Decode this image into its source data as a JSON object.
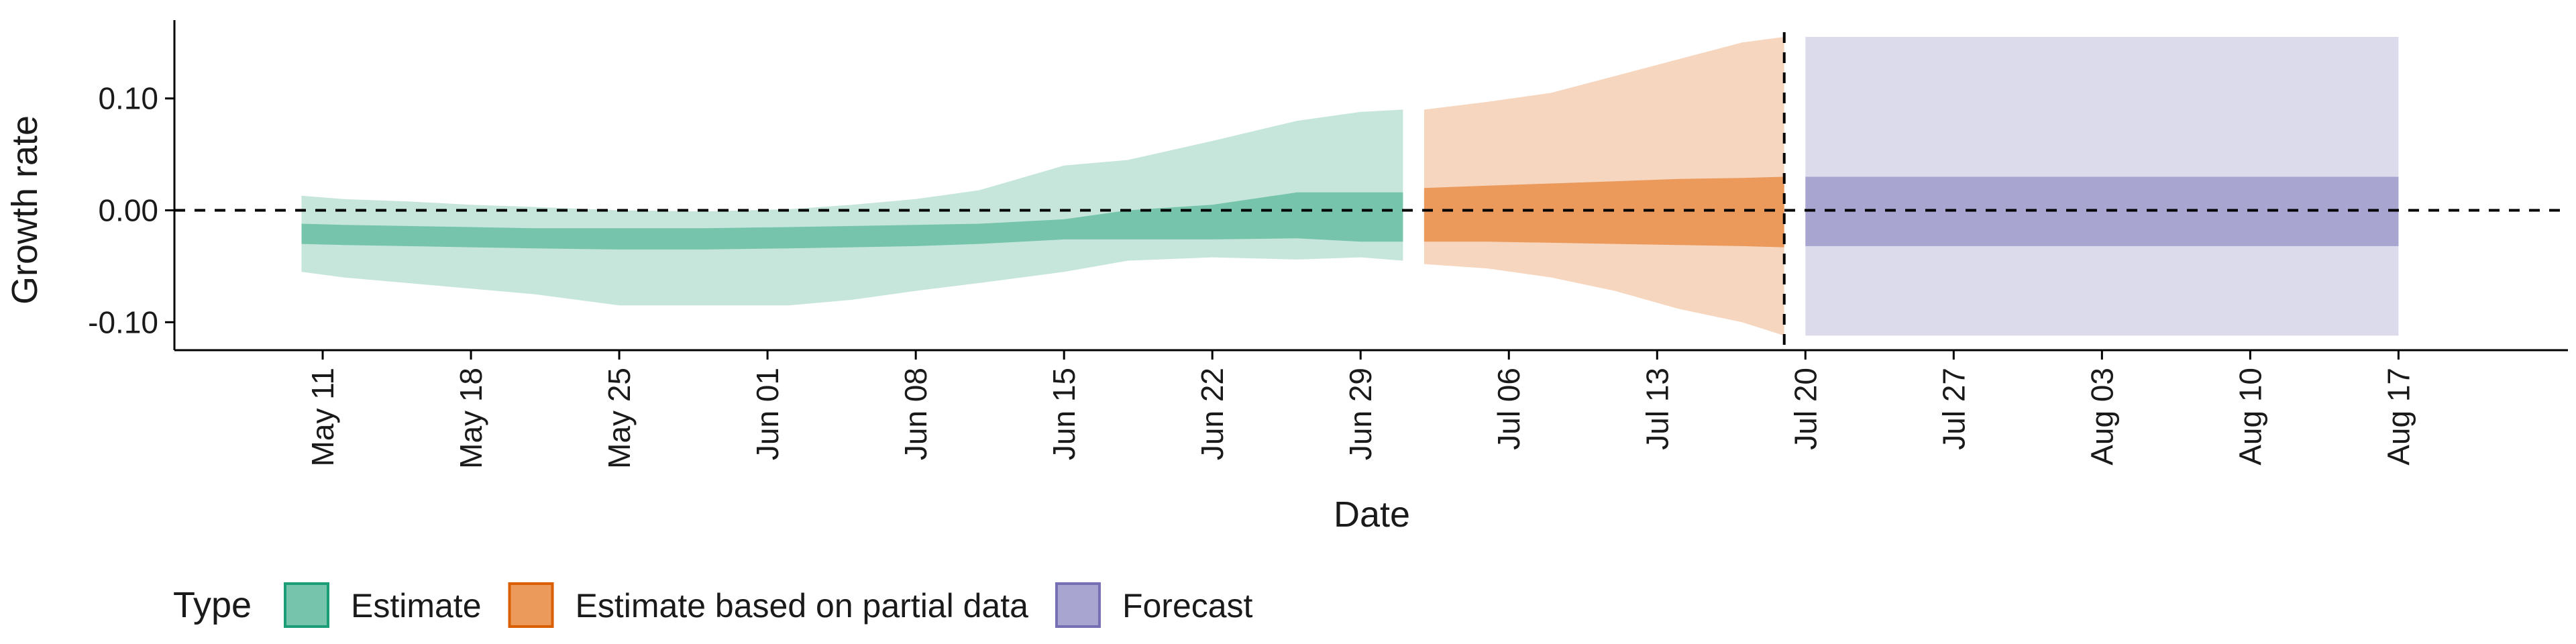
{
  "chart_data": {
    "type": "area",
    "xlabel": "Date",
    "ylabel": "Growth rate",
    "x_type": "date",
    "xlim": [
      "2020-05-04",
      "2020-08-25"
    ],
    "ylim": [
      -0.125,
      0.17
    ],
    "y_ticks": [
      -0.1,
      0.0,
      0.1
    ],
    "y_tick_labels": [
      "-0.10",
      "0.00",
      "0.10"
    ],
    "x_ticks": [
      "2020-05-11",
      "2020-05-18",
      "2020-05-25",
      "2020-06-01",
      "2020-06-08",
      "2020-06-15",
      "2020-06-22",
      "2020-06-29",
      "2020-07-06",
      "2020-07-13",
      "2020-07-20",
      "2020-07-27",
      "2020-08-03",
      "2020-08-10",
      "2020-08-17"
    ],
    "x_tick_labels": [
      "May 11",
      "May 18",
      "May 25",
      "Jun 01",
      "Jun 08",
      "Jun 15",
      "Jun 22",
      "Jun 29",
      "Jul 06",
      "Jul 13",
      "Jul 20",
      "Jul 27",
      "Aug 03",
      "Aug 10",
      "Aug 17"
    ],
    "reference_lines": {
      "horizontal_y": 0.0,
      "vertical_x": "2020-07-19",
      "style": "dashed"
    },
    "grid": false,
    "legend": {
      "title": "Type",
      "position": "bottom",
      "entries": [
        {
          "label": "Estimate",
          "fill": "#76c4ab",
          "border": "#1b9e77"
        },
        {
          "label": "Estimate based on partial data",
          "fill": "#eb9a5c",
          "border": "#d95f02"
        },
        {
          "label": "Forecast",
          "fill": "#a8a5d1",
          "border": "#7570b3"
        }
      ]
    },
    "series": [
      {
        "name": "Estimate",
        "colors": {
          "inner": "#76c4ab",
          "outer": "#c6e6dc"
        },
        "points": [
          {
            "x": "2020-05-10",
            "lo90": -0.055,
            "lo50": -0.03,
            "hi50": -0.012,
            "hi90": 0.013
          },
          {
            "x": "2020-05-12",
            "lo90": -0.06,
            "lo50": -0.031,
            "hi50": -0.013,
            "hi90": 0.01
          },
          {
            "x": "2020-05-15",
            "lo90": -0.065,
            "lo50": -0.032,
            "hi50": -0.014,
            "hi90": 0.008
          },
          {
            "x": "2020-05-18",
            "lo90": -0.07,
            "lo50": -0.033,
            "hi50": -0.015,
            "hi90": 0.005
          },
          {
            "x": "2020-05-21",
            "lo90": -0.075,
            "lo50": -0.034,
            "hi50": -0.016,
            "hi90": 0.003
          },
          {
            "x": "2020-05-25",
            "lo90": -0.085,
            "lo50": -0.035,
            "hi50": -0.016,
            "hi90": 0.0
          },
          {
            "x": "2020-05-29",
            "lo90": -0.085,
            "lo50": -0.035,
            "hi50": -0.016,
            "hi90": -0.001
          },
          {
            "x": "2020-06-02",
            "lo90": -0.085,
            "lo50": -0.034,
            "hi50": -0.015,
            "hi90": 0.001
          },
          {
            "x": "2020-06-05",
            "lo90": -0.08,
            "lo50": -0.033,
            "hi50": -0.014,
            "hi90": 0.005
          },
          {
            "x": "2020-06-08",
            "lo90": -0.072,
            "lo50": -0.032,
            "hi50": -0.013,
            "hi90": 0.01
          },
          {
            "x": "2020-06-11",
            "lo90": -0.065,
            "lo50": -0.03,
            "hi50": -0.012,
            "hi90": 0.018
          },
          {
            "x": "2020-06-15",
            "lo90": -0.055,
            "lo50": -0.026,
            "hi50": -0.008,
            "hi90": 0.04
          },
          {
            "x": "2020-06-18",
            "lo90": -0.045,
            "lo50": -0.026,
            "hi50": 0.0,
            "hi90": 0.045
          },
          {
            "x": "2020-06-22",
            "lo90": -0.042,
            "lo50": -0.026,
            "hi50": 0.005,
            "hi90": 0.062
          },
          {
            "x": "2020-06-26",
            "lo90": -0.044,
            "lo50": -0.025,
            "hi50": 0.016,
            "hi90": 0.08
          },
          {
            "x": "2020-06-29",
            "lo90": -0.042,
            "lo50": -0.028,
            "hi50": 0.016,
            "hi90": 0.088
          },
          {
            "x": "2020-07-01",
            "lo90": -0.045,
            "lo50": -0.028,
            "hi50": 0.016,
            "hi90": 0.09
          }
        ]
      },
      {
        "name": "Estimate based on partial data",
        "colors": {
          "inner": "#eb9a5c",
          "outer": "#f6d6bf"
        },
        "points": [
          {
            "x": "2020-07-02",
            "lo90": -0.048,
            "lo50": -0.028,
            "hi50": 0.02,
            "hi90": 0.09
          },
          {
            "x": "2020-07-05",
            "lo90": -0.052,
            "lo50": -0.028,
            "hi50": 0.022,
            "hi90": 0.097
          },
          {
            "x": "2020-07-08",
            "lo90": -0.06,
            "lo50": -0.029,
            "hi50": 0.024,
            "hi90": 0.105
          },
          {
            "x": "2020-07-11",
            "lo90": -0.072,
            "lo50": -0.03,
            "hi50": 0.026,
            "hi90": 0.12
          },
          {
            "x": "2020-07-14",
            "lo90": -0.088,
            "lo50": -0.031,
            "hi50": 0.028,
            "hi90": 0.135
          },
          {
            "x": "2020-07-17",
            "lo90": -0.1,
            "lo50": -0.032,
            "hi50": 0.029,
            "hi90": 0.15
          },
          {
            "x": "2020-07-19",
            "lo90": -0.112,
            "lo50": -0.033,
            "hi50": 0.03,
            "hi90": 0.155
          }
        ]
      },
      {
        "name": "Forecast",
        "colors": {
          "inner": "#a8a5d1",
          "outer": "#dcdbec"
        },
        "points": [
          {
            "x": "2020-07-20",
            "lo90": -0.112,
            "lo50": -0.032,
            "hi50": 0.03,
            "hi90": 0.155
          },
          {
            "x": "2020-08-17",
            "lo90": -0.112,
            "lo50": -0.032,
            "hi50": 0.03,
            "hi90": 0.155
          }
        ]
      }
    ]
  }
}
